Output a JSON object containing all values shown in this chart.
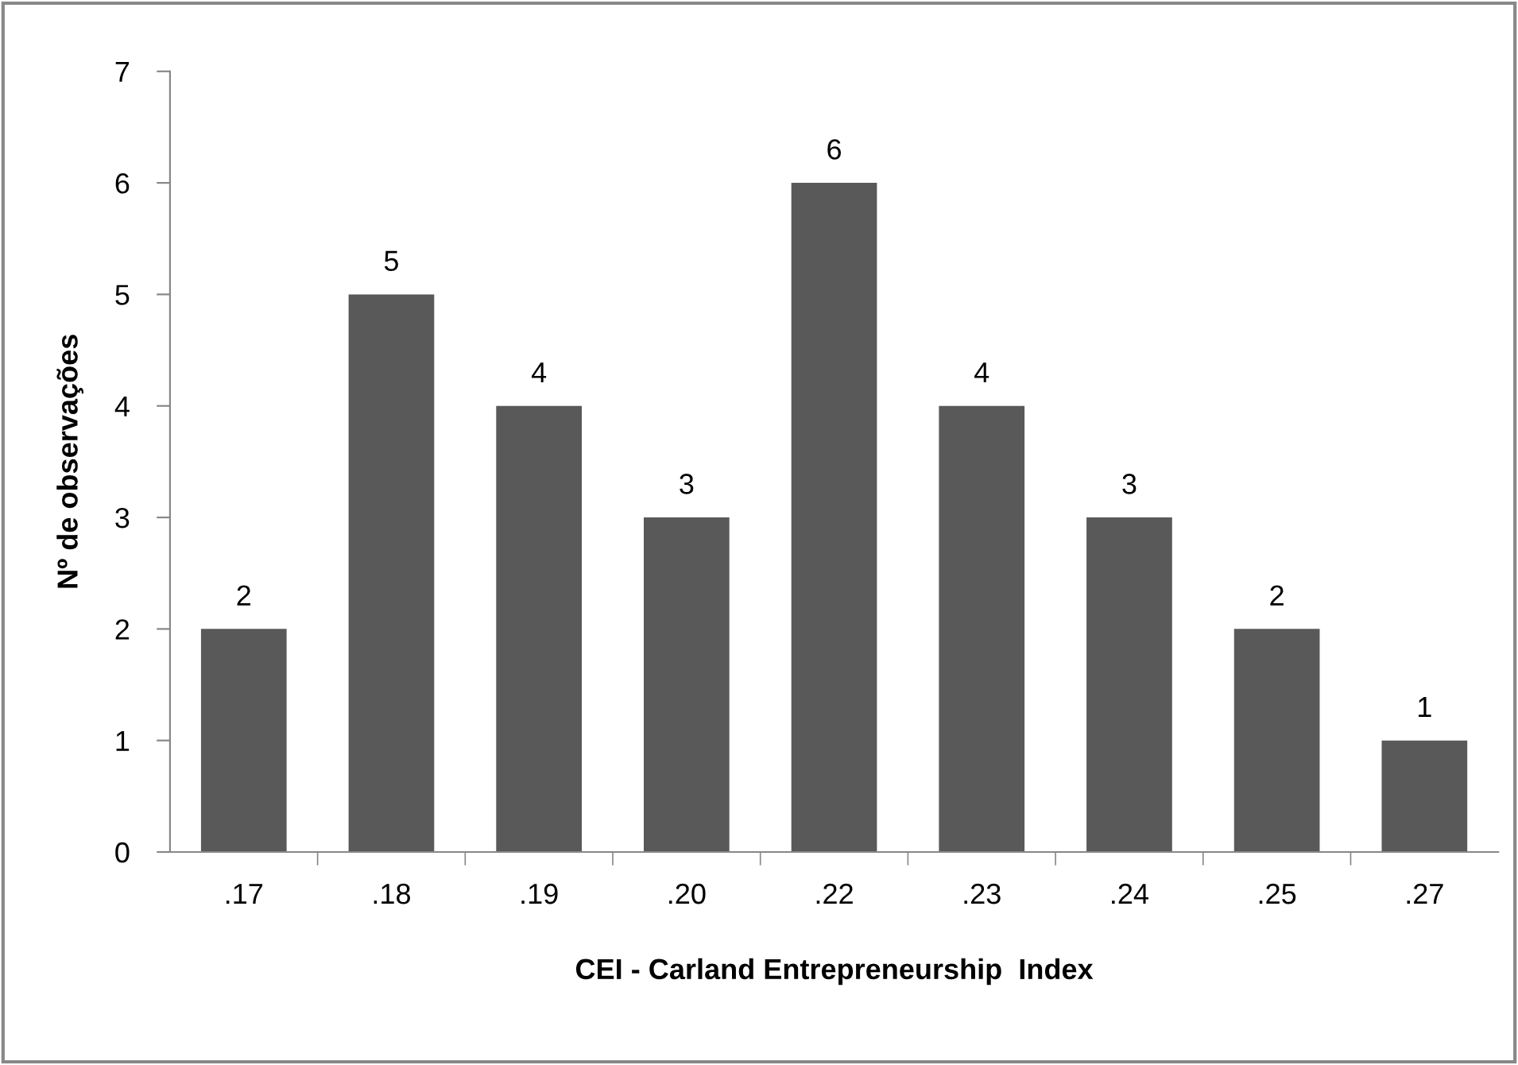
{
  "chart_data": {
    "type": "bar",
    "xlabel": "CEI - Carland Entrepreneurship  Index",
    "ylabel": "Nº de observações",
    "categories": [
      ".17",
      ".18",
      ".19",
      ".20",
      ".22",
      ".23",
      ".24",
      ".25",
      ".27"
    ],
    "values": [
      2,
      5,
      4,
      3,
      6,
      4,
      3,
      2,
      1
    ],
    "color": "#595959",
    "ylim": [
      0,
      7
    ],
    "yticks": [
      0,
      1,
      2,
      3,
      4,
      5,
      6,
      7
    ],
    "grid": false,
    "data_labels": true
  }
}
